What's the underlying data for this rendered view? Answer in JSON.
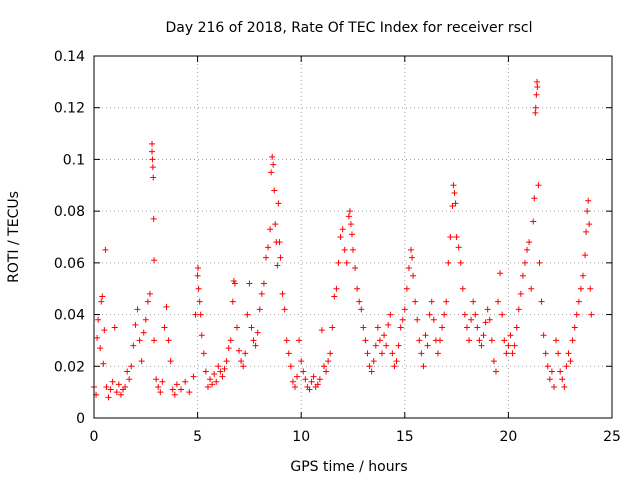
{
  "chart_data": {
    "type": "scatter",
    "title": "Day 216 of 2018, Rate Of TEC Index for receiver rscl",
    "xlabel": "GPS time / hours",
    "ylabel": "ROTI / TECUs",
    "xlim": [
      0,
      25
    ],
    "ylim": [
      0,
      0.14
    ],
    "xticks": [
      0,
      5,
      10,
      15,
      20,
      25
    ],
    "xtick_labels": [
      "0",
      "5",
      "10",
      "15",
      "20",
      "25"
    ],
    "yticks": [
      0,
      0.02,
      0.04,
      0.06,
      0.08,
      0.1,
      0.12,
      0.14
    ],
    "ytick_labels": [
      "0",
      "0.02",
      "0.04",
      "0.06",
      "0.08",
      "0.1",
      "0.12",
      "0.14"
    ],
    "grid": true,
    "marker": "plus",
    "color": "#ff0000",
    "series": [
      {
        "name": "ROTI",
        "points": [
          [
            0.0,
            0.012
          ],
          [
            0.1,
            0.009
          ],
          [
            0.15,
            0.031
          ],
          [
            0.2,
            0.038
          ],
          [
            0.3,
            0.027
          ],
          [
            0.35,
            0.045
          ],
          [
            0.4,
            0.047
          ],
          [
            0.45,
            0.021
          ],
          [
            0.5,
            0.034
          ],
          [
            0.55,
            0.065
          ],
          [
            0.6,
            0.012
          ],
          [
            0.7,
            0.008
          ],
          [
            0.8,
            0.011
          ],
          [
            0.9,
            0.014
          ],
          [
            1.0,
            0.035
          ],
          [
            1.1,
            0.01
          ],
          [
            1.2,
            0.013
          ],
          [
            1.3,
            0.009
          ],
          [
            1.4,
            0.011
          ],
          [
            1.5,
            0.012
          ],
          [
            1.6,
            0.018
          ],
          [
            1.7,
            0.015
          ],
          [
            1.8,
            0.02
          ],
          [
            1.9,
            0.028
          ],
          [
            2.0,
            0.036
          ],
          [
            2.1,
            0.042
          ],
          [
            2.2,
            0.03
          ],
          [
            2.3,
            0.022
          ],
          [
            2.4,
            0.033
          ],
          [
            2.5,
            0.038
          ],
          [
            2.6,
            0.045
          ],
          [
            2.7,
            0.048
          ],
          [
            2.8,
            0.106
          ],
          [
            2.8,
            0.103
          ],
          [
            2.82,
            0.1
          ],
          [
            2.84,
            0.097
          ],
          [
            2.86,
            0.093
          ],
          [
            2.88,
            0.077
          ],
          [
            2.9,
            0.061
          ],
          [
            2.9,
            0.03
          ],
          [
            3.0,
            0.015
          ],
          [
            3.1,
            0.012
          ],
          [
            3.2,
            0.01
          ],
          [
            3.3,
            0.014
          ],
          [
            3.4,
            0.035
          ],
          [
            3.5,
            0.043
          ],
          [
            3.6,
            0.03
          ],
          [
            3.7,
            0.022
          ],
          [
            3.8,
            0.011
          ],
          [
            3.9,
            0.009
          ],
          [
            4.0,
            0.013
          ],
          [
            4.2,
            0.011
          ],
          [
            4.4,
            0.014
          ],
          [
            4.6,
            0.01
          ],
          [
            4.8,
            0.016
          ],
          [
            4.9,
            0.04
          ],
          [
            5.0,
            0.055
          ],
          [
            5.02,
            0.058
          ],
          [
            5.05,
            0.05
          ],
          [
            5.1,
            0.045
          ],
          [
            5.15,
            0.04
          ],
          [
            5.2,
            0.032
          ],
          [
            5.3,
            0.025
          ],
          [
            5.4,
            0.018
          ],
          [
            5.5,
            0.012
          ],
          [
            5.6,
            0.015
          ],
          [
            5.7,
            0.013
          ],
          [
            5.8,
            0.017
          ],
          [
            5.9,
            0.014
          ],
          [
            6.0,
            0.02
          ],
          [
            6.1,
            0.018
          ],
          [
            6.2,
            0.016
          ],
          [
            6.3,
            0.019
          ],
          [
            6.4,
            0.022
          ],
          [
            6.5,
            0.027
          ],
          [
            6.6,
            0.03
          ],
          [
            6.7,
            0.045
          ],
          [
            6.75,
            0.053
          ],
          [
            6.8,
            0.052
          ],
          [
            6.9,
            0.035
          ],
          [
            7.0,
            0.026
          ],
          [
            7.1,
            0.022
          ],
          [
            7.2,
            0.02
          ],
          [
            7.3,
            0.025
          ],
          [
            7.4,
            0.04
          ],
          [
            7.5,
            0.052
          ],
          [
            7.6,
            0.035
          ],
          [
            7.7,
            0.03
          ],
          [
            7.8,
            0.028
          ],
          [
            7.9,
            0.033
          ],
          [
            8.0,
            0.042
          ],
          [
            8.1,
            0.048
          ],
          [
            8.2,
            0.052
          ],
          [
            8.3,
            0.062
          ],
          [
            8.4,
            0.066
          ],
          [
            8.5,
            0.073
          ],
          [
            8.55,
            0.095
          ],
          [
            8.6,
            0.101
          ],
          [
            8.65,
            0.098
          ],
          [
            8.7,
            0.088
          ],
          [
            8.75,
            0.075
          ],
          [
            8.8,
            0.068
          ],
          [
            8.85,
            0.059
          ],
          [
            8.9,
            0.083
          ],
          [
            8.95,
            0.068
          ],
          [
            9.0,
            0.062
          ],
          [
            9.1,
            0.048
          ],
          [
            9.2,
            0.042
          ],
          [
            9.3,
            0.03
          ],
          [
            9.4,
            0.025
          ],
          [
            9.5,
            0.02
          ],
          [
            9.6,
            0.014
          ],
          [
            9.7,
            0.012
          ],
          [
            9.8,
            0.016
          ],
          [
            9.9,
            0.03
          ],
          [
            10.0,
            0.022
          ],
          [
            10.1,
            0.018
          ],
          [
            10.2,
            0.015
          ],
          [
            10.3,
            0.012
          ],
          [
            10.4,
            0.011
          ],
          [
            10.5,
            0.014
          ],
          [
            10.6,
            0.016
          ],
          [
            10.7,
            0.012
          ],
          [
            10.8,
            0.013
          ],
          [
            10.9,
            0.015
          ],
          [
            11.0,
            0.034
          ],
          [
            11.1,
            0.02
          ],
          [
            11.2,
            0.018
          ],
          [
            11.3,
            0.022
          ],
          [
            11.4,
            0.025
          ],
          [
            11.5,
            0.035
          ],
          [
            11.6,
            0.047
          ],
          [
            11.7,
            0.05
          ],
          [
            11.8,
            0.06
          ],
          [
            11.9,
            0.07
          ],
          [
            12.0,
            0.073
          ],
          [
            12.1,
            0.065
          ],
          [
            12.2,
            0.06
          ],
          [
            12.3,
            0.078
          ],
          [
            12.35,
            0.08
          ],
          [
            12.4,
            0.075
          ],
          [
            12.45,
            0.071
          ],
          [
            12.5,
            0.065
          ],
          [
            12.6,
            0.058
          ],
          [
            12.7,
            0.05
          ],
          [
            12.8,
            0.045
          ],
          [
            12.9,
            0.042
          ],
          [
            13.0,
            0.035
          ],
          [
            13.1,
            0.03
          ],
          [
            13.2,
            0.025
          ],
          [
            13.3,
            0.02
          ],
          [
            13.4,
            0.018
          ],
          [
            13.5,
            0.022
          ],
          [
            13.6,
            0.028
          ],
          [
            13.7,
            0.035
          ],
          [
            13.8,
            0.03
          ],
          [
            13.9,
            0.025
          ],
          [
            14.0,
            0.032
          ],
          [
            14.1,
            0.028
          ],
          [
            14.2,
            0.036
          ],
          [
            14.3,
            0.04
          ],
          [
            14.4,
            0.025
          ],
          [
            14.5,
            0.02
          ],
          [
            14.6,
            0.022
          ],
          [
            14.7,
            0.028
          ],
          [
            14.8,
            0.035
          ],
          [
            14.9,
            0.038
          ],
          [
            15.0,
            0.042
          ],
          [
            15.1,
            0.05
          ],
          [
            15.2,
            0.058
          ],
          [
            15.3,
            0.065
          ],
          [
            15.35,
            0.062
          ],
          [
            15.4,
            0.055
          ],
          [
            15.5,
            0.045
          ],
          [
            15.6,
            0.038
          ],
          [
            15.7,
            0.03
          ],
          [
            15.8,
            0.025
          ],
          [
            15.9,
            0.02
          ],
          [
            16.0,
            0.032
          ],
          [
            16.1,
            0.028
          ],
          [
            16.2,
            0.04
          ],
          [
            16.3,
            0.045
          ],
          [
            16.4,
            0.038
          ],
          [
            16.5,
            0.03
          ],
          [
            16.6,
            0.025
          ],
          [
            16.7,
            0.03
          ],
          [
            16.8,
            0.035
          ],
          [
            16.9,
            0.04
          ],
          [
            17.0,
            0.045
          ],
          [
            17.1,
            0.06
          ],
          [
            17.2,
            0.07
          ],
          [
            17.3,
            0.082
          ],
          [
            17.35,
            0.09
          ],
          [
            17.4,
            0.087
          ],
          [
            17.45,
            0.083
          ],
          [
            17.5,
            0.07
          ],
          [
            17.6,
            0.066
          ],
          [
            17.7,
            0.06
          ],
          [
            17.8,
            0.05
          ],
          [
            17.9,
            0.04
          ],
          [
            18.0,
            0.035
          ],
          [
            18.1,
            0.03
          ],
          [
            18.2,
            0.038
          ],
          [
            18.3,
            0.045
          ],
          [
            18.4,
            0.04
          ],
          [
            18.5,
            0.035
          ],
          [
            18.6,
            0.03
          ],
          [
            18.7,
            0.028
          ],
          [
            18.8,
            0.032
          ],
          [
            18.9,
            0.037
          ],
          [
            19.0,
            0.042
          ],
          [
            19.1,
            0.038
          ],
          [
            19.2,
            0.03
          ],
          [
            19.3,
            0.022
          ],
          [
            19.4,
            0.018
          ],
          [
            19.5,
            0.045
          ],
          [
            19.6,
            0.056
          ],
          [
            19.7,
            0.04
          ],
          [
            19.8,
            0.03
          ],
          [
            19.9,
            0.025
          ],
          [
            20.0,
            0.028
          ],
          [
            20.1,
            0.032
          ],
          [
            20.2,
            0.025
          ],
          [
            20.3,
            0.028
          ],
          [
            20.4,
            0.035
          ],
          [
            20.5,
            0.042
          ],
          [
            20.6,
            0.048
          ],
          [
            20.7,
            0.055
          ],
          [
            20.8,
            0.06
          ],
          [
            20.9,
            0.065
          ],
          [
            21.0,
            0.068
          ],
          [
            21.1,
            0.05
          ],
          [
            21.2,
            0.076
          ],
          [
            21.25,
            0.085
          ],
          [
            21.3,
            0.118
          ],
          [
            21.32,
            0.12
          ],
          [
            21.35,
            0.125
          ],
          [
            21.38,
            0.13
          ],
          [
            21.4,
            0.128
          ],
          [
            21.45,
            0.09
          ],
          [
            21.5,
            0.06
          ],
          [
            21.6,
            0.045
          ],
          [
            21.7,
            0.032
          ],
          [
            21.8,
            0.025
          ],
          [
            21.9,
            0.02
          ],
          [
            22.0,
            0.015
          ],
          [
            22.1,
            0.018
          ],
          [
            22.2,
            0.012
          ],
          [
            22.3,
            0.03
          ],
          [
            22.4,
            0.025
          ],
          [
            22.5,
            0.018
          ],
          [
            22.6,
            0.015
          ],
          [
            22.7,
            0.012
          ],
          [
            22.8,
            0.02
          ],
          [
            22.9,
            0.025
          ],
          [
            23.0,
            0.022
          ],
          [
            23.1,
            0.03
          ],
          [
            23.2,
            0.035
          ],
          [
            23.3,
            0.04
          ],
          [
            23.4,
            0.045
          ],
          [
            23.5,
            0.05
          ],
          [
            23.6,
            0.055
          ],
          [
            23.7,
            0.063
          ],
          [
            23.75,
            0.072
          ],
          [
            23.8,
            0.08
          ],
          [
            23.85,
            0.084
          ],
          [
            23.9,
            0.075
          ],
          [
            23.95,
            0.05
          ],
          [
            24.0,
            0.04
          ]
        ]
      }
    ]
  }
}
